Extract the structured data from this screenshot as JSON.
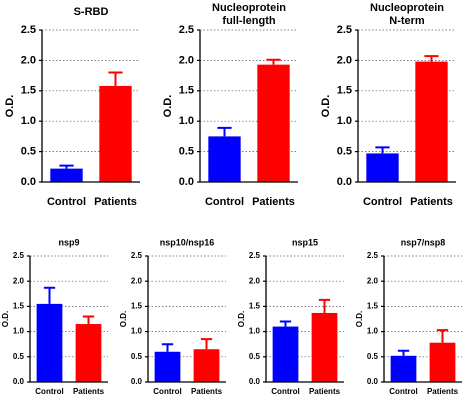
{
  "chart_data": [
    {
      "type": "bar",
      "title": [
        "S-RBD"
      ],
      "ylabel": "O.D.",
      "categories": [
        "Control",
        "Patients"
      ],
      "values": [
        0.22,
        1.58
      ],
      "errors": [
        0.05,
        0.22
      ],
      "colors": [
        "#0000ff",
        "#ff0000"
      ],
      "ylim": [
        0,
        2.5
      ],
      "yticks": [
        {
          "value": 0,
          "label": "0.0"
        },
        0.5,
        {
          "value": 1,
          "label": "1.0"
        },
        1.5,
        {
          "value": 2,
          "label": "2.0"
        },
        2.5
      ],
      "grid": true
    },
    {
      "type": "bar",
      "title": [
        "Nucleoprotein",
        "full-length"
      ],
      "ylabel": "O.D.",
      "categories": [
        "Control",
        "Patients"
      ],
      "values": [
        0.75,
        1.93
      ],
      "errors": [
        0.14,
        0.08
      ],
      "colors": [
        "#0000ff",
        "#ff0000"
      ],
      "ylim": [
        0,
        2.5
      ],
      "yticks": [
        {
          "value": 0,
          "label": "0.0"
        },
        0.5,
        {
          "value": 1,
          "label": "1.0"
        },
        1.5,
        {
          "value": 2,
          "label": "2.0"
        },
        2.5
      ],
      "grid": true
    },
    {
      "type": "bar",
      "title": [
        "Nucleoprotein",
        "N-term"
      ],
      "ylabel": "O.D.",
      "categories": [
        "Control",
        "Patients"
      ],
      "values": [
        0.47,
        1.98
      ],
      "errors": [
        0.1,
        0.09
      ],
      "colors": [
        "#0000ff",
        "#ff0000"
      ],
      "ylim": [
        0,
        2.5
      ],
      "yticks": [
        {
          "value": 0,
          "label": "0.0"
        },
        0.5,
        {
          "value": 1,
          "label": "1.0"
        },
        1.5,
        {
          "value": 2,
          "label": "2.0"
        },
        2.5
      ],
      "grid": true
    },
    {
      "type": "bar",
      "title": [
        "nsp9"
      ],
      "ylabel": "O.D.",
      "categories": [
        "Control",
        "Patients"
      ],
      "values": [
        1.55,
        1.15
      ],
      "errors": [
        0.32,
        0.15
      ],
      "colors": [
        "#0000ff",
        "#ff0000"
      ],
      "ylim": [
        0,
        2.5
      ],
      "yticks": [
        {
          "value": 0,
          "label": "0.0"
        },
        0.5,
        {
          "value": 1,
          "label": "1.0"
        },
        1.5,
        {
          "value": 2,
          "label": "2.0"
        },
        2.5
      ],
      "grid": true
    },
    {
      "type": "bar",
      "title": [
        "nsp10/nsp16"
      ],
      "ylabel": "O.D.",
      "categories": [
        "Control",
        "Patients"
      ],
      "values": [
        0.6,
        0.65
      ],
      "errors": [
        0.15,
        0.2
      ],
      "colors": [
        "#0000ff",
        "#ff0000"
      ],
      "ylim": [
        0,
        2.5
      ],
      "yticks": [
        {
          "value": 0,
          "label": "0.0"
        },
        0.5,
        {
          "value": 1,
          "label": "1.0"
        },
        1.5,
        {
          "value": 2,
          "label": "2.0"
        },
        2.5
      ],
      "grid": true
    },
    {
      "type": "bar",
      "title": [
        "nsp15"
      ],
      "ylabel": "O.D.",
      "categories": [
        "Control",
        "Patients"
      ],
      "values": [
        1.1,
        1.37
      ],
      "errors": [
        0.1,
        0.26
      ],
      "colors": [
        "#0000ff",
        "#ff0000"
      ],
      "ylim": [
        0,
        2.5
      ],
      "yticks": [
        {
          "value": 0,
          "label": "0.0"
        },
        0.5,
        {
          "value": 1,
          "label": "1.0"
        },
        1.5,
        {
          "value": 2,
          "label": "2.0"
        },
        2.5
      ],
      "grid": true
    },
    {
      "type": "bar",
      "title": [
        "nsp7/nsp8"
      ],
      "ylabel": "O.D.",
      "categories": [
        "Control",
        "Patients"
      ],
      "values": [
        0.52,
        0.78
      ],
      "errors": [
        0.1,
        0.25
      ],
      "colors": [
        "#0000ff",
        "#ff0000"
      ],
      "ylim": [
        0,
        2.5
      ],
      "yticks": [
        {
          "value": 0,
          "label": "0.0"
        },
        0.5,
        {
          "value": 1,
          "label": "1.0"
        },
        1.5,
        {
          "value": 2,
          "label": "2.0"
        },
        2.5
      ],
      "grid": true
    }
  ]
}
